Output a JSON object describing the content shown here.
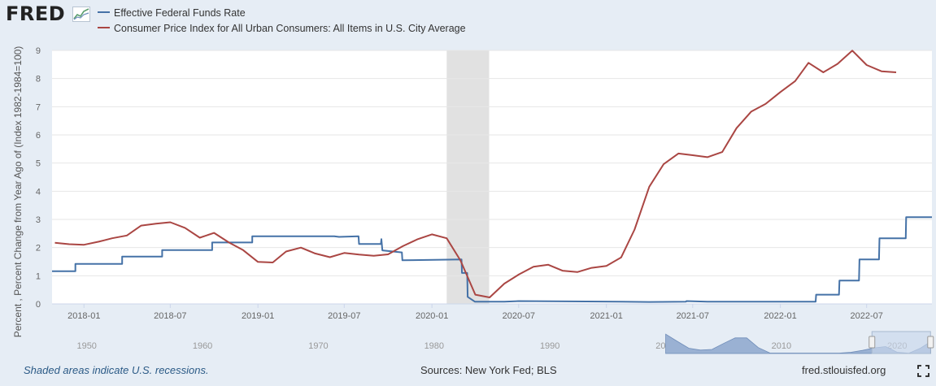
{
  "header": {
    "logo_text": "FRED",
    "logo_icon": "trend-chart-icon"
  },
  "footer": {
    "recession_note": "Shaded areas indicate U.S. recessions.",
    "sources": "Sources: New York Fed; BLS",
    "site": "fred.stlouisfed.org",
    "fullscreen_icon": "fullscreen-icon"
  },
  "colors": {
    "background": "#e6edf5",
    "plot_background": "#ffffff",
    "fed_funds": "#4572a7",
    "cpi": "#aa4643",
    "recession": "#e1e1e1",
    "navigator_fill": "#9ab1d3"
  },
  "chart_data": {
    "type": "line",
    "ylabel": "Percent , Percent Change from Year Ago of (Index 1982-1984=100)",
    "ylim": [
      0,
      9
    ],
    "yticks": [
      "0",
      "1",
      "2",
      "3",
      "4",
      "5",
      "6",
      "7",
      "8",
      "9"
    ],
    "xlim": [
      "2017-10-26",
      "2022-11-15"
    ],
    "xticks": [
      "2018-01",
      "2018-07",
      "2019-01",
      "2019-07",
      "2020-01",
      "2020-07",
      "2021-01",
      "2021-07",
      "2022-01",
      "2022-07"
    ],
    "grid": true,
    "legend_position": "top",
    "recessions": [
      [
        "2020-02-01",
        "2020-04-30"
      ]
    ],
    "series": [
      {
        "name": "Effective Federal Funds Rate",
        "color": "#4572a7",
        "points": [
          [
            "2017-10-26",
            1.16
          ],
          [
            "2017-12-14",
            1.16
          ],
          [
            "2017-12-14",
            1.42
          ],
          [
            "2018-03-22",
            1.42
          ],
          [
            "2018-03-22",
            1.68
          ],
          [
            "2018-06-14",
            1.68
          ],
          [
            "2018-06-14",
            1.91
          ],
          [
            "2018-09-27",
            1.91
          ],
          [
            "2018-09-27",
            2.18
          ],
          [
            "2018-12-20",
            2.18
          ],
          [
            "2018-12-20",
            2.4
          ],
          [
            "2019-06-10",
            2.4
          ],
          [
            "2019-06-20",
            2.38
          ],
          [
            "2019-07-31",
            2.4
          ],
          [
            "2019-08-01",
            2.13
          ],
          [
            "2019-09-16",
            2.13
          ],
          [
            "2019-09-17",
            2.3
          ],
          [
            "2019-09-19",
            1.9
          ],
          [
            "2019-10-30",
            1.83
          ],
          [
            "2019-10-31",
            1.55
          ],
          [
            "2020-03-03",
            1.58
          ],
          [
            "2020-03-04",
            1.1
          ],
          [
            "2020-03-15",
            1.1
          ],
          [
            "2020-03-16",
            0.25
          ],
          [
            "2020-03-31",
            0.08
          ],
          [
            "2020-06-01",
            0.08
          ],
          [
            "2020-07-01",
            0.1
          ],
          [
            "2021-02-01",
            0.08
          ],
          [
            "2021-04-01",
            0.07
          ],
          [
            "2021-06-17",
            0.08
          ],
          [
            "2021-06-18",
            0.1
          ],
          [
            "2021-08-01",
            0.08
          ],
          [
            "2022-03-16",
            0.08
          ],
          [
            "2022-03-17",
            0.33
          ],
          [
            "2022-05-04",
            0.33
          ],
          [
            "2022-05-05",
            0.83
          ],
          [
            "2022-06-15",
            0.83
          ],
          [
            "2022-06-16",
            1.58
          ],
          [
            "2022-07-27",
            1.58
          ],
          [
            "2022-07-28",
            2.33
          ],
          [
            "2022-09-21",
            2.33
          ],
          [
            "2022-09-22",
            3.08
          ],
          [
            "2022-11-15",
            3.08
          ]
        ]
      },
      {
        "name": "Consumer Price Index for All Urban Consumers: All Items in U.S. City Average",
        "color": "#aa4643",
        "points": [
          [
            "2017-11-01",
            2.17
          ],
          [
            "2017-12-01",
            2.12
          ],
          [
            "2018-01-01",
            2.1
          ],
          [
            "2018-02-01",
            2.21
          ],
          [
            "2018-03-01",
            2.33
          ],
          [
            "2018-04-01",
            2.43
          ],
          [
            "2018-05-01",
            2.78
          ],
          [
            "2018-06-01",
            2.85
          ],
          [
            "2018-07-01",
            2.9
          ],
          [
            "2018-08-01",
            2.7
          ],
          [
            "2018-09-01",
            2.35
          ],
          [
            "2018-10-01",
            2.52
          ],
          [
            "2018-11-01",
            2.18
          ],
          [
            "2018-12-01",
            1.91
          ],
          [
            "2019-01-01",
            1.49
          ],
          [
            "2019-02-01",
            1.47
          ],
          [
            "2019-03-01",
            1.86
          ],
          [
            "2019-04-01",
            2.0
          ],
          [
            "2019-05-01",
            1.79
          ],
          [
            "2019-06-01",
            1.66
          ],
          [
            "2019-07-01",
            1.81
          ],
          [
            "2019-08-01",
            1.75
          ],
          [
            "2019-09-01",
            1.71
          ],
          [
            "2019-10-01",
            1.76
          ],
          [
            "2019-11-01",
            2.05
          ],
          [
            "2019-12-01",
            2.29
          ],
          [
            "2020-01-01",
            2.47
          ],
          [
            "2020-02-01",
            2.33
          ],
          [
            "2020-03-01",
            1.54
          ],
          [
            "2020-04-01",
            0.33
          ],
          [
            "2020-05-01",
            0.23
          ],
          [
            "2020-06-01",
            0.72
          ],
          [
            "2020-07-01",
            1.04
          ],
          [
            "2020-08-01",
            1.32
          ],
          [
            "2020-09-01",
            1.39
          ],
          [
            "2020-10-01",
            1.18
          ],
          [
            "2020-11-01",
            1.13
          ],
          [
            "2020-12-01",
            1.28
          ],
          [
            "2021-01-01",
            1.35
          ],
          [
            "2021-02-01",
            1.65
          ],
          [
            "2021-03-01",
            2.64
          ],
          [
            "2021-04-01",
            4.16
          ],
          [
            "2021-05-01",
            4.96
          ],
          [
            "2021-06-01",
            5.34
          ],
          [
            "2021-07-01",
            5.28
          ],
          [
            "2021-08-01",
            5.21
          ],
          [
            "2021-09-01",
            5.39
          ],
          [
            "2021-10-01",
            6.24
          ],
          [
            "2021-11-01",
            6.83
          ],
          [
            "2021-12-01",
            7.1
          ],
          [
            "2022-01-01",
            7.52
          ],
          [
            "2022-02-01",
            7.91
          ],
          [
            "2022-03-01",
            8.56
          ],
          [
            "2022-04-01",
            8.22
          ],
          [
            "2022-05-01",
            8.52
          ],
          [
            "2022-06-01",
            8.99
          ],
          [
            "2022-07-01",
            8.48
          ],
          [
            "2022-08-01",
            8.26
          ],
          [
            "2022-09-01",
            8.22
          ]
        ]
      }
    ],
    "navigator": {
      "ticks": [
        "1950",
        "1960",
        "1970",
        "1980",
        "1990",
        "2000",
        "2010",
        "2020"
      ],
      "range": [
        1947,
        2023
      ],
      "selected": [
        2017.82,
        2022.88
      ]
    }
  }
}
